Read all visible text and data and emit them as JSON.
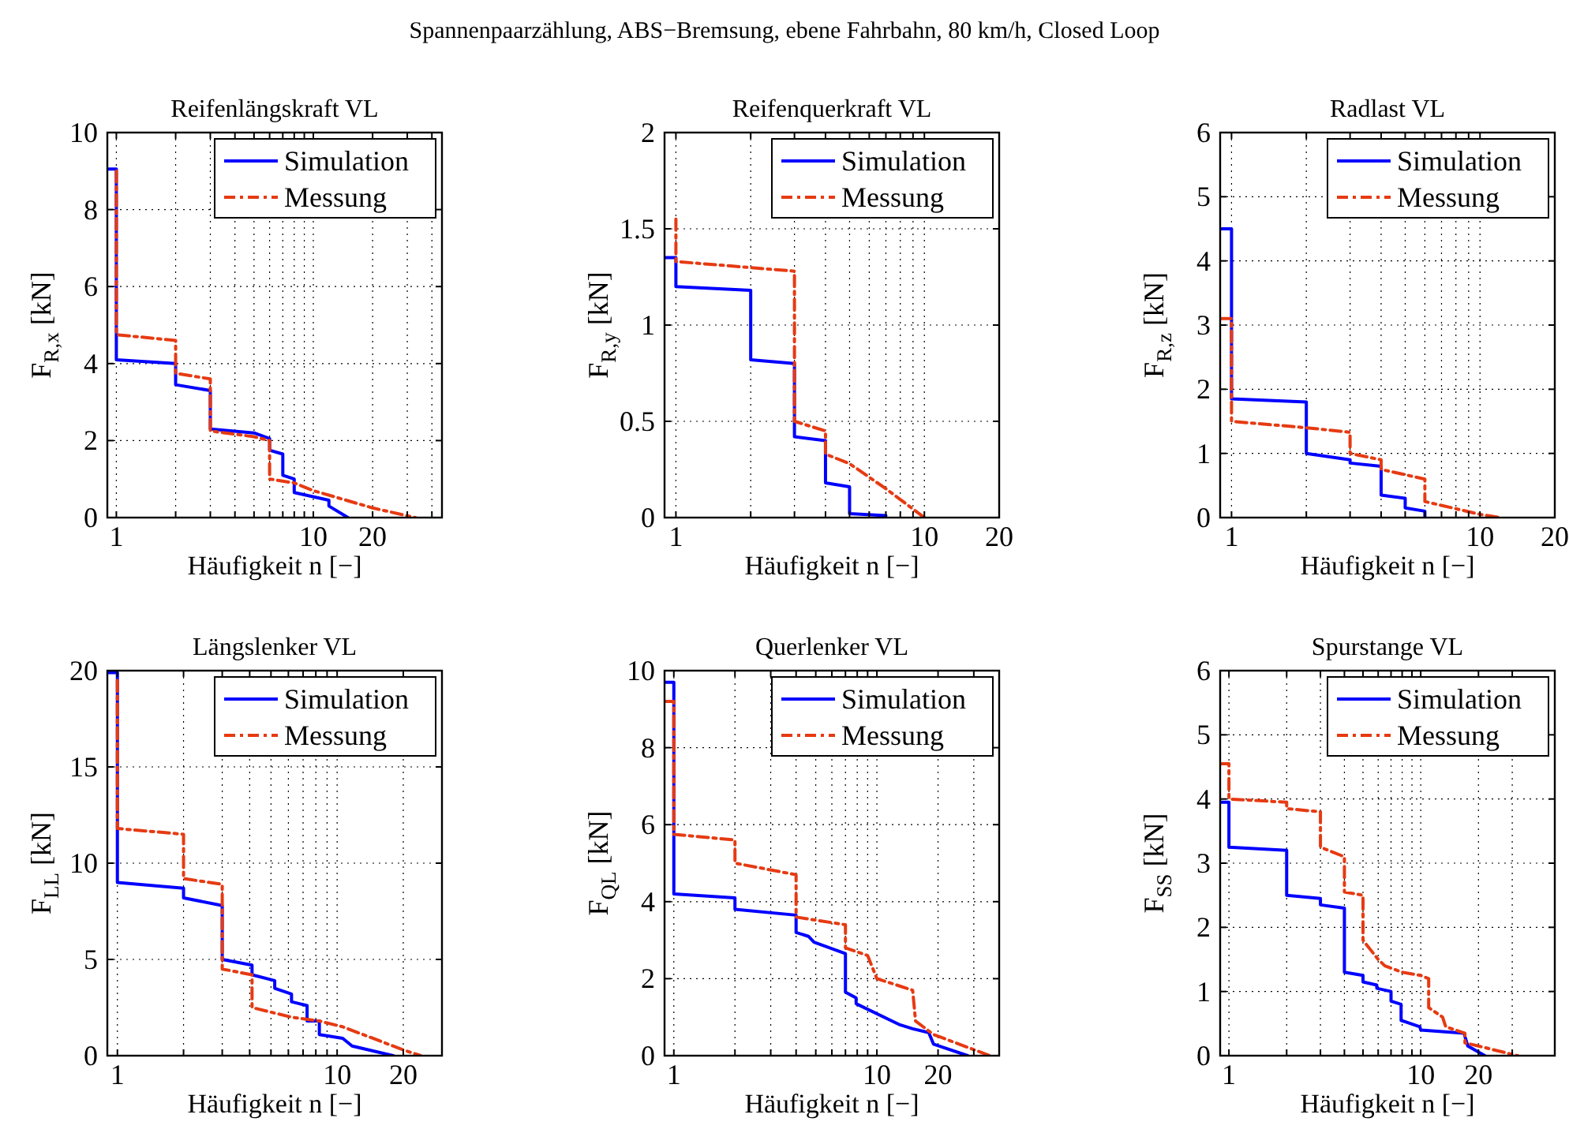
{
  "chart_data": [
    {
      "type": "line",
      "title": "Reifenlängskraft VL",
      "xlabel": "Häufigkeit n [−]",
      "ylabel": "F$_{R,x}$ [kN]",
      "annotations": [
        "Spannenpaarzählung, ABS−Bremsung, ebene Fahrbahn, 80 km/h, Closed Loop"
      ],
      "log": "x",
      "grid": true,
      "legend": "top right",
      "xlim": [
        0.9,
        45
      ],
      "ylim": [
        0,
        10
      ],
      "yticks": [
        0,
        2,
        4,
        6,
        8,
        10
      ],
      "xticks": [
        1,
        {
          "value": 2,
          "label": null
        },
        {
          "value": 3,
          "label": null
        },
        {
          "value": 4,
          "label": null
        },
        {
          "value": 5,
          "label": null
        },
        {
          "value": 6,
          "label": null
        },
        {
          "value": 7,
          "label": null
        },
        {
          "value": 8,
          "label": null
        },
        {
          "value": 9,
          "label": null
        },
        10,
        20,
        {
          "value": 30,
          "label": null
        },
        {
          "value": 40,
          "label": null
        }
      ],
      "series": [
        {
          "name": "Simulation",
          "color": "#0000ff",
          "line_style": "solid",
          "x": [
            0.9,
            1,
            1,
            2,
            2,
            3,
            3,
            5,
            6,
            6,
            7,
            7,
            8,
            8,
            12,
            12,
            15
          ],
          "values": [
            9.05,
            9.05,
            4.1,
            4.0,
            3.45,
            3.3,
            2.3,
            2.2,
            2.05,
            1.75,
            1.65,
            1.1,
            1.0,
            0.65,
            0.45,
            0.3,
            0
          ]
        },
        {
          "name": "Messung",
          "color": "#e63a12",
          "line_style": "dashed",
          "x": [
            1,
            1,
            2,
            2,
            3,
            3,
            5,
            6,
            6,
            8,
            10,
            20,
            33
          ],
          "values": [
            9,
            4.75,
            4.6,
            3.75,
            3.6,
            2.25,
            2.1,
            2.0,
            1.0,
            0.9,
            0.7,
            0.25,
            0
          ]
        }
      ]
    },
    {
      "type": "line",
      "title": "Reifenquerkraft VL",
      "xlabel": "Häufigkeit n [−]",
      "ylabel": "F$_{R,y}$ [kN]",
      "log": "x",
      "grid": true,
      "legend": "top right",
      "xlim": [
        0.9,
        20
      ],
      "ylim": [
        0,
        2
      ],
      "yticks": [
        0,
        0.5,
        1,
        1.5,
        2
      ],
      "xticks": [
        1,
        {
          "value": 2,
          "label": null
        },
        {
          "value": 3,
          "label": null
        },
        {
          "value": 4,
          "label": null
        },
        {
          "value": 5,
          "label": null
        },
        {
          "value": 6,
          "label": null
        },
        {
          "value": 7,
          "label": null
        },
        {
          "value": 8,
          "label": null
        },
        {
          "value": 9,
          "label": null
        },
        10,
        20
      ],
      "series": [
        {
          "name": "Simulation",
          "color": "#0000ff",
          "line_style": "solid",
          "x": [
            0.9,
            1,
            1,
            2,
            2,
            3,
            3,
            4,
            4,
            5,
            5,
            7
          ],
          "values": [
            1.35,
            1.35,
            1.2,
            1.18,
            0.82,
            0.8,
            0.42,
            0.4,
            0.18,
            0.16,
            0.02,
            0.01
          ]
        },
        {
          "name": "Messung",
          "color": "#e63a12",
          "line_style": "dashed",
          "x": [
            1,
            1,
            3,
            3,
            4,
            4,
            5,
            7,
            10
          ],
          "values": [
            1.55,
            1.33,
            1.28,
            0.5,
            0.45,
            0.33,
            0.28,
            0.15,
            0
          ]
        }
      ]
    },
    {
      "type": "line",
      "title": "Radlast VL",
      "xlabel": "Häufigkeit n [−]",
      "ylabel": "F$_{R,z}$ [kN]",
      "log": "x",
      "grid": true,
      "legend": "top right",
      "xlim": [
        0.9,
        20
      ],
      "ylim": [
        0,
        6
      ],
      "yticks": [
        0,
        1,
        2,
        3,
        4,
        5,
        6
      ],
      "xticks": [
        1,
        {
          "value": 2,
          "label": null
        },
        {
          "value": 3,
          "label": null
        },
        {
          "value": 4,
          "label": null
        },
        {
          "value": 5,
          "label": null
        },
        {
          "value": 6,
          "label": null
        },
        {
          "value": 7,
          "label": null
        },
        {
          "value": 8,
          "label": null
        },
        {
          "value": 9,
          "label": null
        },
        10,
        20
      ],
      "series": [
        {
          "name": "Simulation",
          "color": "#0000ff",
          "line_style": "solid",
          "x": [
            0.9,
            1,
            1,
            2,
            2,
            3,
            3,
            4,
            4,
            5,
            5,
            6,
            6
          ],
          "values": [
            4.5,
            4.5,
            1.85,
            1.8,
            1.0,
            0.9,
            0.85,
            0.8,
            0.35,
            0.3,
            0.15,
            0.1,
            0
          ]
        },
        {
          "name": "Messung",
          "color": "#e63a12",
          "line_style": "dashed",
          "x": [
            0.9,
            1,
            1,
            2,
            3,
            3,
            4,
            4,
            6,
            6,
            10,
            12
          ],
          "values": [
            3.1,
            3.1,
            1.5,
            1.4,
            1.33,
            1.0,
            0.9,
            0.75,
            0.6,
            0.25,
            0.05,
            0
          ]
        }
      ]
    },
    {
      "type": "line",
      "title": "Längslenker VL",
      "xlabel": "Häufigkeit n [−]",
      "ylabel": "F$_{LL}$ [kN]",
      "log": "x",
      "grid": true,
      "legend": "top right",
      "xlim": [
        0.9,
        30
      ],
      "ylim": [
        0,
        20
      ],
      "yticks": [
        0,
        5,
        10,
        15,
        20
      ],
      "xticks": [
        1,
        {
          "value": 2,
          "label": null
        },
        {
          "value": 3,
          "label": null
        },
        {
          "value": 4,
          "label": null
        },
        {
          "value": 5,
          "label": null
        },
        {
          "value": 6,
          "label": null
        },
        {
          "value": 7,
          "label": null
        },
        {
          "value": 8,
          "label": null
        },
        {
          "value": 9,
          "label": null
        },
        10,
        20
      ],
      "series": [
        {
          "name": "Simulation",
          "color": "#0000ff",
          "line_style": "solid",
          "x": [
            0.9,
            1,
            1,
            2,
            2,
            3,
            3,
            4.1,
            4.1,
            5.2,
            5.2,
            6.2,
            6.2,
            7.3,
            7.3,
            8.3,
            8.3,
            10.6,
            11.7,
            18
          ],
          "values": [
            19.9,
            19.9,
            9.0,
            8.7,
            8.2,
            7.8,
            5.0,
            4.7,
            4.2,
            3.9,
            3.5,
            3.2,
            2.8,
            2.6,
            1.8,
            1.8,
            1.1,
            0.9,
            0.5,
            0
          ]
        },
        {
          "name": "Messung",
          "color": "#e63a12",
          "line_style": "dashed",
          "x": [
            1,
            1,
            2,
            2,
            3,
            3,
            4.1,
            4.1,
            6.2,
            8.3,
            10.6,
            20,
            24
          ],
          "values": [
            19.5,
            11.8,
            11.5,
            9.2,
            8.9,
            4.5,
            4.2,
            2.5,
            2.0,
            1.8,
            1.5,
            0.3,
            0
          ]
        }
      ]
    },
    {
      "type": "line",
      "title": "Querlenker VL",
      "xlabel": "Häufigkeit n [−]",
      "ylabel": "F$_{QL}$ [kN]",
      "log": "x",
      "grid": true,
      "legend": "top right",
      "xlim": [
        0.9,
        40
      ],
      "ylim": [
        0,
        10
      ],
      "yticks": [
        0,
        2,
        4,
        6,
        8,
        10
      ],
      "xticks": [
        1,
        {
          "value": 2,
          "label": null
        },
        {
          "value": 3,
          "label": null
        },
        {
          "value": 4,
          "label": null
        },
        {
          "value": 5,
          "label": null
        },
        {
          "value": 6,
          "label": null
        },
        {
          "value": 7,
          "label": null
        },
        {
          "value": 8,
          "label": null
        },
        {
          "value": 9,
          "label": null
        },
        10,
        20,
        {
          "value": 30,
          "label": null
        }
      ],
      "series": [
        {
          "name": "Simulation",
          "color": "#0000ff",
          "line_style": "solid",
          "x": [
            0.9,
            1,
            1,
            2,
            2,
            4,
            4,
            4.6,
            4.9,
            7,
            7,
            7.9,
            7.9,
            13,
            15,
            18,
            19,
            28
          ],
          "values": [
            9.7,
            9.7,
            4.2,
            4.1,
            3.8,
            3.65,
            3.2,
            3.1,
            2.95,
            2.65,
            1.65,
            1.5,
            1.35,
            0.8,
            0.7,
            0.6,
            0.3,
            0
          ]
        },
        {
          "name": "Messung",
          "color": "#e63a12",
          "line_style": "dashed",
          "x": [
            0.9,
            1,
            1,
            2,
            2,
            4,
            4,
            7,
            7,
            9,
            10,
            15,
            15.5,
            19,
            36
          ],
          "values": [
            9.2,
            9.2,
            5.75,
            5.6,
            5.0,
            4.7,
            3.6,
            3.4,
            2.8,
            2.6,
            2.0,
            1.7,
            0.9,
            0.55,
            0
          ]
        }
      ]
    },
    {
      "type": "line",
      "title": "Spurstange VL",
      "xlabel": "Häufigkeit n [−]",
      "ylabel": "F$_{SS}$ [kN]",
      "log": "x",
      "grid": true,
      "legend": "top right",
      "xlim": [
        0.9,
        50
      ],
      "ylim": [
        0,
        6
      ],
      "yticks": [
        0,
        1,
        2,
        3,
        4,
        5,
        6
      ],
      "xticks": [
        1,
        {
          "value": 2,
          "label": null
        },
        {
          "value": 3,
          "label": null
        },
        {
          "value": 4,
          "label": null
        },
        {
          "value": 5,
          "label": null
        },
        {
          "value": 6,
          "label": null
        },
        {
          "value": 7,
          "label": null
        },
        {
          "value": 8,
          "label": null
        },
        {
          "value": 9,
          "label": null
        },
        10,
        20,
        {
          "value": 30,
          "label": null
        }
      ],
      "series": [
        {
          "name": "Simulation",
          "color": "#0000ff",
          "line_style": "solid",
          "x": [
            0.9,
            1,
            1,
            2,
            2,
            3,
            3,
            4,
            4,
            5,
            5,
            5.9,
            5.9,
            7,
            7,
            7.9,
            7.9,
            9.9,
            10,
            16.8,
            17.6,
            21.6
          ],
          "values": [
            3.95,
            3.95,
            3.25,
            3.2,
            2.5,
            2.45,
            2.35,
            2.3,
            1.3,
            1.25,
            1.15,
            1.1,
            1.05,
            1.0,
            0.85,
            0.8,
            0.55,
            0.45,
            0.4,
            0.35,
            0.15,
            0
          ]
        },
        {
          "name": "Messung",
          "color": "#e63a12",
          "line_style": "dashed",
          "x": [
            0.9,
            1,
            1,
            2,
            2,
            3,
            3,
            4,
            4,
            5,
            5,
            6,
            6.5,
            8,
            10,
            11,
            11,
            13,
            13.5,
            17,
            17,
            20,
            32
          ],
          "values": [
            4.55,
            4.55,
            4.0,
            3.95,
            3.85,
            3.8,
            3.25,
            3.1,
            2.55,
            2.5,
            1.8,
            1.5,
            1.4,
            1.3,
            1.25,
            1.2,
            0.75,
            0.6,
            0.45,
            0.35,
            0.2,
            0.15,
            0
          ]
        }
      ]
    }
  ]
}
